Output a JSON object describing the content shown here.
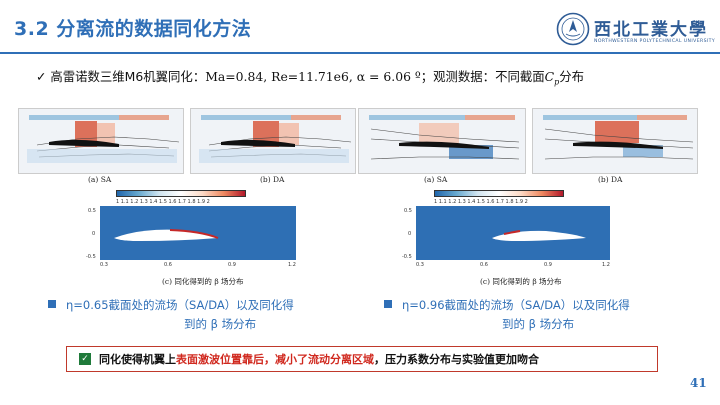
{
  "slide": {
    "title": "3.2 分离流的数据同化方法",
    "page_number": "41"
  },
  "logo": {
    "text": "西北工業大學",
    "subtitle": "NORTHWESTERN POLYTECHNICAL UNIVERSITY"
  },
  "bullet1": {
    "mark": "✓",
    "text_a": "高雷诺数三维M6机翼同化：",
    "text_b": "Ma=0.84, Re=11.71e6, α = 6.06 º",
    "text_c": "；观测数据：不同截面",
    "text_cp": "C",
    "text_cp_sub": "p",
    "text_d": "分布"
  },
  "figures": {
    "left": {
      "cap_a": "(a)  SA",
      "cap_b": "(b)  DA",
      "cap_c": "(c)  同化得到的 β 场分布",
      "colorbar_ticks": "1   1.1  1.2  1.3  1.4  1.5  1.6  1.7  1.8  1.9  2",
      "x_ticks": [
        "0.3",
        "0.6",
        "0.9",
        "1.2"
      ],
      "y_ticks": [
        "0.5",
        "0",
        "-0.5"
      ]
    },
    "right": {
      "cap_a": "(a)  SA",
      "cap_b": "(b)  DA",
      "cap_c": "(c)  同化得到的 β 场分布",
      "colorbar_ticks": "1   1.1  1.2  1.3  1.4  1.5  1.6  1.7  1.8  1.9  2",
      "x_ticks": [
        "0.3",
        "0.6",
        "0.9",
        "1.2"
      ],
      "y_ticks": [
        "0.5",
        "0",
        "-0.5"
      ]
    }
  },
  "notes": {
    "left_line1": "η=0.65截面处的流场（SA/DA）以及同化得",
    "left_line2": "到的 β 场分布",
    "right_line1": "η=0.96截面处的流场（SA/DA）以及同化得",
    "right_line2": "到的 β 场分布"
  },
  "conclusion": {
    "mark": "✓",
    "part1": "同化使得机翼上",
    "part2": "表面激波位置靠后，减小了流动分离区域",
    "part3": "，压力系数分布与实验值更加吻合"
  },
  "colors": {
    "accent": "#2f6fb7",
    "highlight": "#d0281e",
    "check": "#1f7a3a"
  }
}
